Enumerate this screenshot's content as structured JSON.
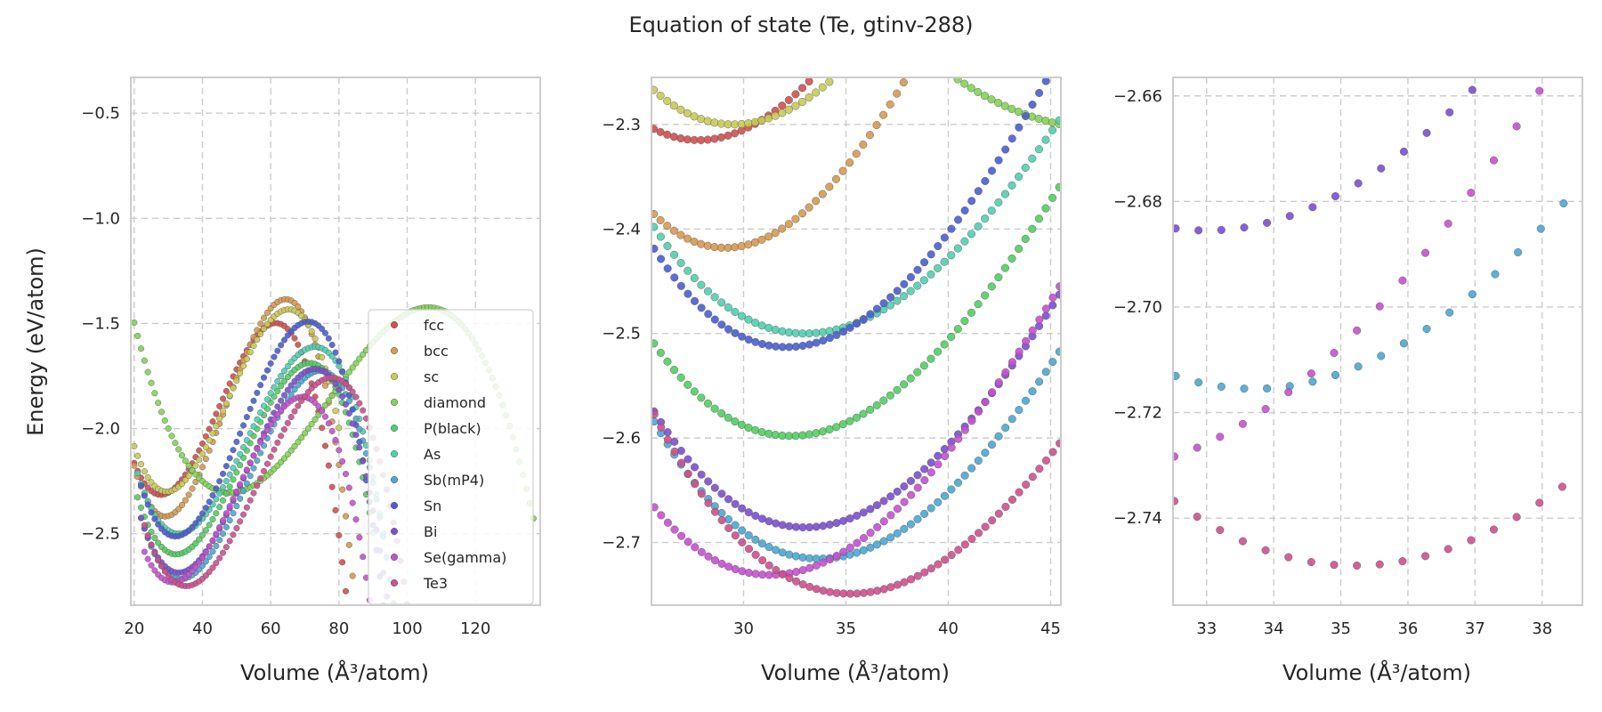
{
  "figure": {
    "title": "Equation of state (Te, gtinv-288)"
  },
  "chart_data": [
    {
      "type": "scatter",
      "panel": "full-range",
      "xlabel": "Volume (Å³/atom)",
      "ylabel": "Energy (eV/atom)",
      "xlim": [
        19,
        139
      ],
      "ylim": [
        -2.84,
        -0.33
      ],
      "xticks": [
        20,
        40,
        60,
        80,
        100,
        120
      ],
      "yticks": [
        -2.5,
        -2.0,
        -1.5,
        -1.0,
        -0.5
      ],
      "grid": true,
      "legend_position": "lower-right",
      "legend": [
        "fcc",
        "bcc",
        "sc",
        "diamond",
        "P(black)",
        "As",
        "Sb(mP4)",
        "Sn",
        "Bi",
        "Se(gamma)",
        "Te3"
      ]
    },
    {
      "type": "scatter",
      "panel": "zoom-1",
      "xlabel": "Volume (Å³/atom)",
      "ylabel": "",
      "xlim": [
        25.5,
        45.5
      ],
      "ylim": [
        -2.76,
        -2.255
      ],
      "xticks": [
        30,
        35,
        40,
        45
      ],
      "yticks": [
        -2.7,
        -2.6,
        -2.5,
        -2.4,
        -2.3
      ],
      "grid": true
    },
    {
      "type": "scatter",
      "panel": "zoom-2",
      "xlabel": "Volume (Å³/atom)",
      "ylabel": "",
      "xlim": [
        32.5,
        38.6
      ],
      "ylim": [
        -2.7565,
        -2.6565
      ],
      "xticks": [
        33,
        34,
        35,
        36,
        37,
        38
      ],
      "yticks": [
        -2.74,
        -2.72,
        -2.7,
        -2.68,
        -2.66
      ],
      "grid": true
    }
  ],
  "series": [
    {
      "name": "fcc",
      "color": "#d0504f",
      "e0": -2.315,
      "v0": 27.8,
      "B": 0.12,
      "Vmax": 83,
      "Vmin": 20
    },
    {
      "name": "bcc",
      "color": "#d79a4e",
      "e0": -2.418,
      "v0": 29.1,
      "B": 0.145,
      "Vmax": 85,
      "Vmin": 20
    },
    {
      "name": "sc",
      "color": "#c8cc52",
      "e0": -2.3,
      "v0": 29.5,
      "B": 0.12,
      "Vmax": 80,
      "Vmin": 20
    },
    {
      "name": "diamond",
      "color": "#82d455",
      "e0": -2.305,
      "v0": 48.0,
      "B": 0.075,
      "Vmax": 137,
      "Vmin": 20
    },
    {
      "name": "P(black)",
      "color": "#50cf62",
      "e0": -2.598,
      "v0": 32.3,
      "B": 0.115,
      "Vmax": 90,
      "Vmin": 21
    },
    {
      "name": "As",
      "color": "#4fd0b0",
      "e0": -2.5,
      "v0": 33.0,
      "B": 0.11,
      "Vmax": 93,
      "Vmin": 21
    },
    {
      "name": "Sb(mP4)",
      "color": "#4aa8d2",
      "e0": -2.7155,
      "v0": 33.7,
      "B": 0.12,
      "Vmax": 100,
      "Vmin": 22
    },
    {
      "name": "Sn",
      "color": "#4a5ed2",
      "e0": -2.513,
      "v0": 32.1,
      "B": 0.13,
      "Vmax": 95,
      "Vmin": 22
    },
    {
      "name": "Bi",
      "color": "#7b4fd2",
      "e0": -2.6855,
      "v0": 33.0,
      "B": 0.12,
      "Vmax": 97,
      "Vmin": 22
    },
    {
      "name": "Se(gamma)",
      "color": "#c84fd2",
      "e0": -2.731,
      "v0": 31.3,
      "B": 0.115,
      "Vmax": 95,
      "Vmin": 23
    },
    {
      "name": "Te3",
      "color": "#d04f8e",
      "e0": -2.749,
      "v0": 35.2,
      "B": 0.115,
      "Vmax": 105,
      "Vmin": 23
    }
  ]
}
